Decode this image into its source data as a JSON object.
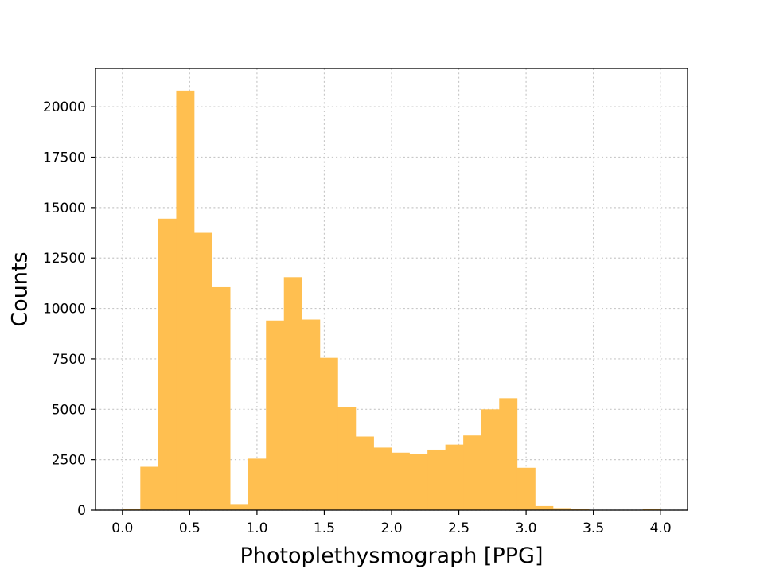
{
  "chart_data": {
    "type": "bar",
    "title": "",
    "xlabel": "Photoplethysmograph [PPG]",
    "ylabel": "Counts",
    "xlim": [
      -0.2,
      4.2
    ],
    "ylim": [
      0,
      21900
    ],
    "xticks": [
      0.0,
      0.5,
      1.0,
      1.5,
      2.0,
      2.5,
      3.0,
      3.5,
      4.0
    ],
    "xtick_labels": [
      "0.0",
      "0.5",
      "1.0",
      "1.5",
      "2.0",
      "2.5",
      "3.0",
      "3.5",
      "4.0"
    ],
    "yticks": [
      0,
      2500,
      5000,
      7500,
      10000,
      12500,
      15000,
      17500,
      20000
    ],
    "ytick_labels": [
      "0",
      "2500",
      "5000",
      "7500",
      "10000",
      "12500",
      "15000",
      "17500",
      "20000"
    ],
    "grid": true,
    "bar_color": "#ffbf50",
    "bin_edges": [
      0.0,
      0.133,
      0.267,
      0.4,
      0.533,
      0.667,
      0.8,
      0.933,
      1.067,
      1.2,
      1.333,
      1.467,
      1.6,
      1.733,
      1.867,
      2.0,
      2.133,
      2.267,
      2.4,
      2.533,
      2.667,
      2.8,
      2.933,
      3.067,
      3.2,
      3.333,
      3.467,
      3.6,
      3.733,
      3.867,
      4.0
    ],
    "values": [
      50,
      2150,
      14450,
      20800,
      13750,
      11050,
      300,
      2550,
      9400,
      11550,
      9450,
      7550,
      5100,
      3650,
      3100,
      2850,
      2800,
      3000,
      3250,
      3700,
      5000,
      5550,
      2100,
      200,
      100,
      50,
      0,
      0,
      0,
      50
    ]
  }
}
